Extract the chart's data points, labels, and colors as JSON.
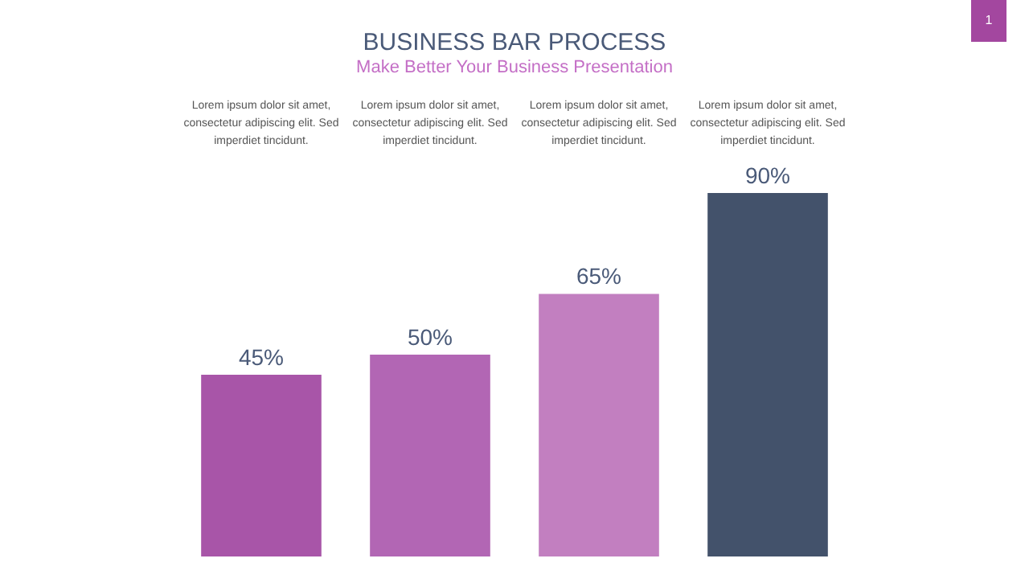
{
  "chart_data": {
    "type": "bar",
    "title": "BUSINESS BAR PROCESS",
    "subtitle": "Make Better Your Business Presentation",
    "categories": [
      null,
      null,
      null,
      null
    ],
    "values": [
      45,
      50,
      65,
      90
    ],
    "colors": [
      "#a855a8",
      "#b266b4",
      "#c27fc0",
      "#43526b"
    ],
    "value_labels": [
      "45%",
      "50%",
      "65%",
      "90%"
    ],
    "annotations": [
      "Lorem ipsum dolor sit amet, consectetur adipiscing elit. Sed imperdiet tincidunt.",
      "Lorem ipsum dolor sit amet, consectetur adipiscing elit. Sed imperdiet tincidunt.",
      "Lorem ipsum dolor sit amet, consectetur adipiscing elit. Sed imperdiet tincidunt.",
      "Lorem ipsum dolor sit amet, consectetur adipiscing elit. Sed imperdiet tincidunt.",
      "1"
    ],
    "legend": false,
    "grid": false
  }
}
